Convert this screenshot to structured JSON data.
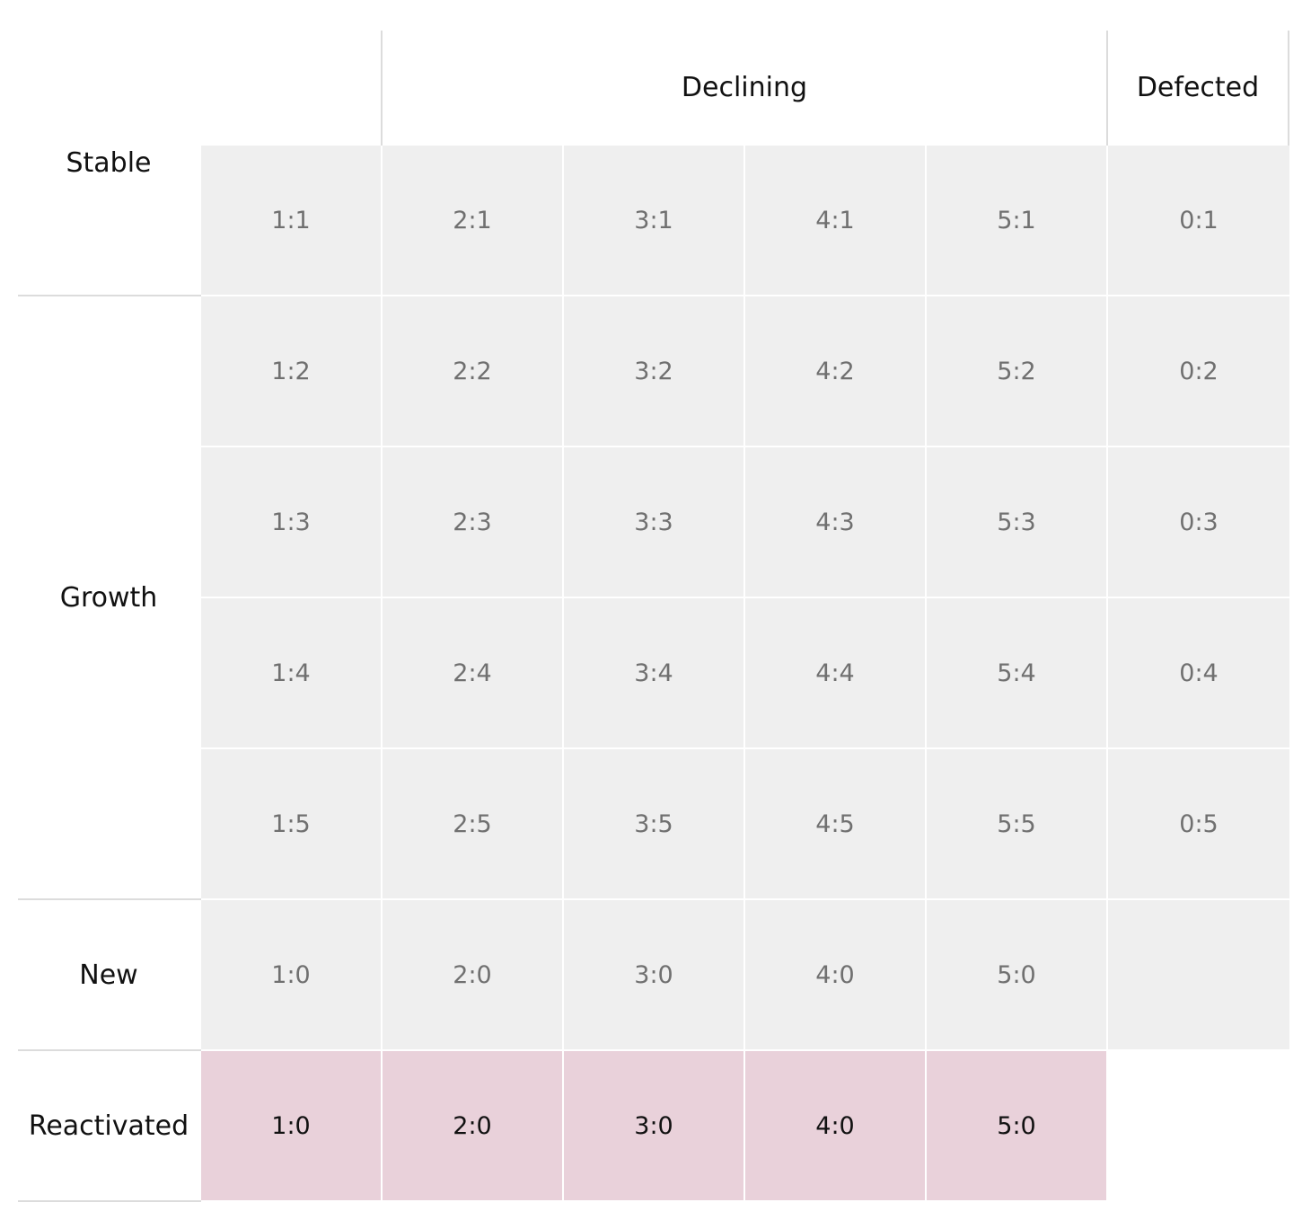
{
  "column_groups": [
    {
      "label": "Declining"
    },
    {
      "label": "Defected"
    }
  ],
  "row_groups": [
    {
      "label": "Stable"
    },
    {
      "label": "Growth"
    },
    {
      "label": "New"
    },
    {
      "label": "Reactivated"
    }
  ],
  "rows": [
    {
      "cells": [
        "1:1",
        "2:1",
        "3:1",
        "4:1",
        "5:1",
        "0:1"
      ],
      "style": "grey"
    },
    {
      "cells": [
        "1:2",
        "2:2",
        "3:2",
        "4:2",
        "5:2",
        "0:2"
      ],
      "style": "grey"
    },
    {
      "cells": [
        "1:3",
        "2:3",
        "3:3",
        "4:3",
        "5:3",
        "0:3"
      ],
      "style": "grey"
    },
    {
      "cells": [
        "1:4",
        "2:4",
        "3:4",
        "4:4",
        "5:4",
        "0:4"
      ],
      "style": "grey"
    },
    {
      "cells": [
        "1:5",
        "2:5",
        "3:5",
        "4:5",
        "5:5",
        "0:5"
      ],
      "style": "grey"
    },
    {
      "cells": [
        "1:0",
        "2:0",
        "3:0",
        "4:0",
        "5:0",
        ""
      ],
      "style": "grey"
    },
    {
      "cells": [
        "1:0",
        "2:0",
        "3:0",
        "4:0",
        "5:0"
      ],
      "style": "pink"
    }
  ],
  "colors": {
    "cell_grey": "#efefef",
    "cell_pink": "#e9d1da",
    "text_grey": "#707070",
    "text_dark": "#111111",
    "divider": "#dcdcdc"
  }
}
